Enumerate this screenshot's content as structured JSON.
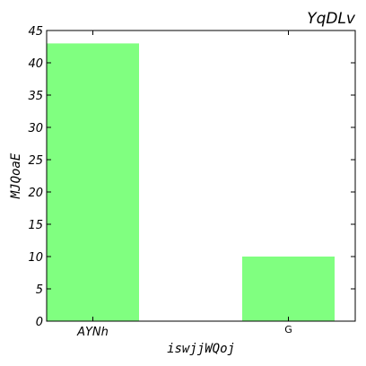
{
  "chart_data": {
    "type": "bar",
    "title": "YqDLv",
    "xlabel": "iswjjWQoj",
    "ylabel": "MJQoaE",
    "categories": [
      "AYNh",
      "G"
    ],
    "values": [
      43,
      10
    ],
    "ylim": [
      0,
      45
    ],
    "yticks": [
      0,
      5,
      10,
      15,
      20,
      25,
      30,
      35,
      40,
      45
    ],
    "bar_color": "#80ff80",
    "grid": false
  }
}
